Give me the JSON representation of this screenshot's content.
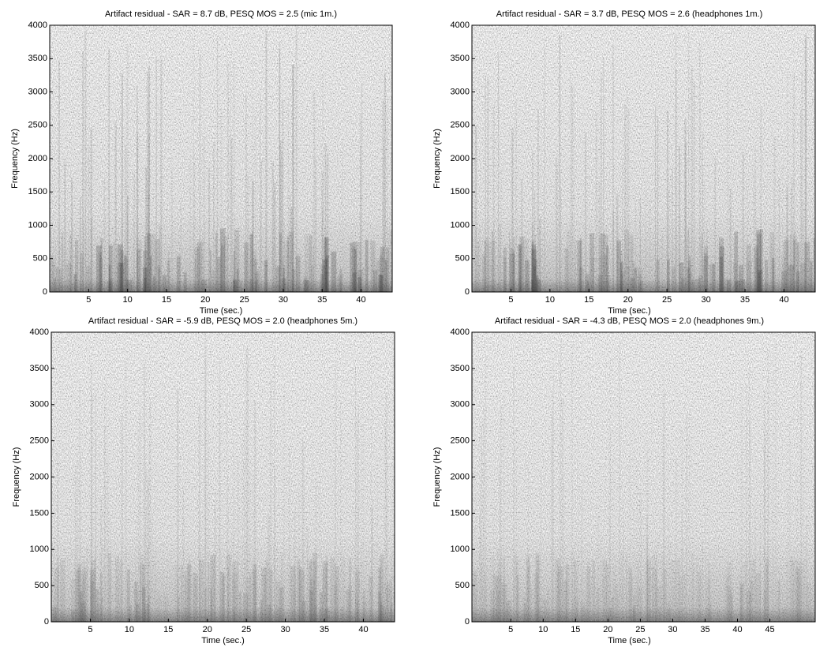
{
  "chart_data": [
    {
      "type": "spectrogram",
      "title": "Artifact residual - SAR = 8.7 dB,  PESQ MOS = 2.5 (mic 1m.)",
      "xlabel": "Time (sec.)",
      "ylabel": "Frequency (Hz)",
      "xlim": [
        0,
        44
      ],
      "ylim": [
        0,
        4000
      ],
      "xticks": [
        5,
        10,
        15,
        20,
        25,
        30,
        35,
        40
      ],
      "yticks": [
        0,
        500,
        1000,
        1500,
        2000,
        2500,
        3000,
        3500,
        4000
      ]
    },
    {
      "type": "spectrogram",
      "title": "Artifact residual - SAR = 3.7 dB,  PESQ MOS = 2.6 (headphones 1m.)",
      "xlabel": "Time (sec.)",
      "ylabel": "Frequency (Hz)",
      "xlim": [
        0,
        44
      ],
      "ylim": [
        0,
        4000
      ],
      "xticks": [
        5,
        10,
        15,
        20,
        25,
        30,
        35,
        40
      ],
      "yticks": [
        0,
        500,
        1000,
        1500,
        2000,
        2500,
        3000,
        3500,
        4000
      ]
    },
    {
      "type": "spectrogram",
      "title": "Artifact residual - SAR = -5.9 dB,  PESQ MOS = 2.0 (headphones 5m.)",
      "xlabel": "Time (sec.)",
      "ylabel": "Frequency (Hz)",
      "xlim": [
        0,
        44
      ],
      "ylim": [
        0,
        4000
      ],
      "xticks": [
        5,
        10,
        15,
        20,
        25,
        30,
        35,
        40
      ],
      "yticks": [
        0,
        500,
        1000,
        1500,
        2000,
        2500,
        3000,
        3500,
        4000
      ]
    },
    {
      "type": "spectrogram",
      "title": "Artifact residual - SAR = -4.3 dB,  PESQ MOS = 2.0 (headphones 9m.)",
      "xlabel": "Time (sec.)",
      "ylabel": "Frequency (Hz)",
      "xlim": [
        -1,
        52
      ],
      "ylim": [
        0,
        4000
      ],
      "xticks": [
        5,
        10,
        15,
        20,
        25,
        30,
        35,
        40,
        45
      ],
      "yticks": [
        0,
        500,
        1000,
        1500,
        2000,
        2500,
        3000,
        3500,
        4000
      ]
    }
  ]
}
